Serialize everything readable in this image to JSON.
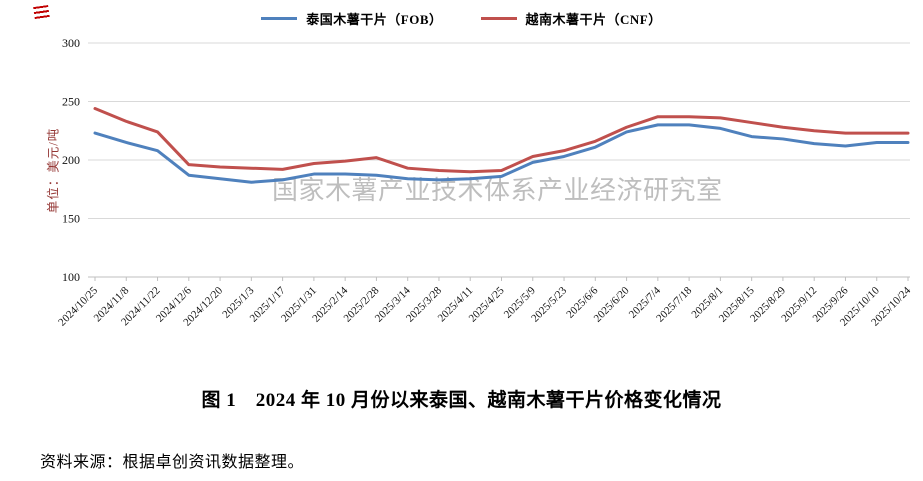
{
  "watermark": {
    "text": "国家木薯产业技术体系产业经济研究室"
  },
  "caption": {
    "text": "图 1　2024 年 10 月份以来泰国、越南木薯干片价格变化情况"
  },
  "source": {
    "text": "资料来源：根据卓创资讯数据整理。"
  },
  "chart_data": {
    "type": "line",
    "title": "图 1　2024 年 10 月份以来泰国、越南木薯干片价格变化情况",
    "xlabel": "",
    "ylabel": "单位：美元/吨",
    "ylabel_color": "#953735",
    "ylim": [
      100,
      300
    ],
    "y_ticks": [
      100,
      150,
      200,
      250,
      300
    ],
    "grid": "horizontal",
    "legend_position": "top",
    "categories": [
      "2024/10/25",
      "2024/11/8",
      "2024/11/22",
      "2024/12/6",
      "2024/12/20",
      "2025/1/3",
      "2025/1/17",
      "2025/1/31",
      "2025/2/14",
      "2025/2/28",
      "2025/3/14",
      "2025/3/28",
      "2025/4/11",
      "2025/4/25",
      "2025/5/9",
      "2025/5/23",
      "2025/6/6",
      "2025/6/20",
      "2025/7/4",
      "2025/7/18",
      "2025/8/1",
      "2025/8/15",
      "2025/8/29",
      "2025/9/12",
      "2025/9/26",
      "2025/10/10",
      "2025/10/24"
    ],
    "series": [
      {
        "name": "泰国木薯干片（FOB）",
        "color": "#4F81BD",
        "values": [
          223,
          215,
          208,
          187,
          184,
          181,
          183,
          188,
          188,
          187,
          184,
          183,
          184,
          186,
          198,
          203,
          211,
          224,
          230,
          230,
          227,
          220,
          218,
          214,
          212,
          215,
          215
        ]
      },
      {
        "name": "越南木薯干片（CNF）",
        "color": "#C0504D",
        "values": [
          244,
          233,
          224,
          196,
          194,
          193,
          192,
          197,
          199,
          202,
          193,
          191,
          190,
          191,
          203,
          208,
          216,
          228,
          237,
          237,
          236,
          232,
          228,
          225,
          223,
          223,
          223
        ]
      }
    ]
  }
}
